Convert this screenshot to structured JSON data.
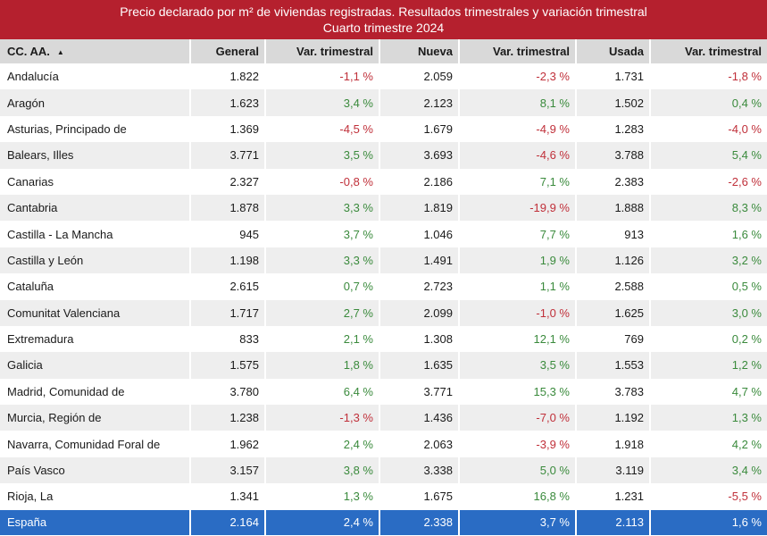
{
  "title": {
    "line1": "Precio declarado por m² de viviendas registradas. Resultados trimestrales y variación trimestral",
    "line2": "Cuarto trimestre 2024"
  },
  "columns": [
    "CC. AA.",
    "General",
    "Var. trimestral",
    "Nueva",
    "Var. trimestral",
    "Usada",
    "Var. trimestral"
  ],
  "sort_icon": "sort-ascending-icon",
  "sort_glyph": "▲",
  "colors": {
    "header_bar": "#b5202e",
    "total_row": "#2a6cc4",
    "positive": "#3a8a3c",
    "negative": "#c0303a"
  },
  "rows": [
    [
      "Andalucía",
      "1.822",
      "-1,1 %",
      "2.059",
      "-2,3 %",
      "1.731",
      "-1,8 %"
    ],
    [
      "Aragón",
      "1.623",
      "3,4 %",
      "2.123",
      "8,1 %",
      "1.502",
      "0,4 %"
    ],
    [
      "Asturias, Principado de",
      "1.369",
      "-4,5 %",
      "1.679",
      "-4,9 %",
      "1.283",
      "-4,0 %"
    ],
    [
      "Balears, Illes",
      "3.771",
      "3,5 %",
      "3.693",
      "-4,6 %",
      "3.788",
      "5,4 %"
    ],
    [
      "Canarias",
      "2.327",
      "-0,8 %",
      "2.186",
      "7,1 %",
      "2.383",
      "-2,6 %"
    ],
    [
      "Cantabria",
      "1.878",
      "3,3 %",
      "1.819",
      "-19,9 %",
      "1.888",
      "8,3 %"
    ],
    [
      "Castilla - La Mancha",
      "945",
      "3,7 %",
      "1.046",
      "7,7 %",
      "913",
      "1,6 %"
    ],
    [
      "Castilla y León",
      "1.198",
      "3,3 %",
      "1.491",
      "1,9 %",
      "1.126",
      "3,2 %"
    ],
    [
      "Cataluña",
      "2.615",
      "0,7 %",
      "2.723",
      "1,1 %",
      "2.588",
      "0,5 %"
    ],
    [
      "Comunitat Valenciana",
      "1.717",
      "2,7 %",
      "2.099",
      "-1,0 %",
      "1.625",
      "3,0 %"
    ],
    [
      "Extremadura",
      "833",
      "2,1 %",
      "1.308",
      "12,1 %",
      "769",
      "0,2 %"
    ],
    [
      "Galicia",
      "1.575",
      "1,8 %",
      "1.635",
      "3,5 %",
      "1.553",
      "1,2 %"
    ],
    [
      "Madrid, Comunidad de",
      "3.780",
      "6,4 %",
      "3.771",
      "15,3 %",
      "3.783",
      "4,7 %"
    ],
    [
      "Murcia, Región de",
      "1.238",
      "-1,3 %",
      "1.436",
      "-7,0 %",
      "1.192",
      "1,3 %"
    ],
    [
      "Navarra, Comunidad Foral de",
      "1.962",
      "2,4 %",
      "2.063",
      "-3,9 %",
      "1.918",
      "4,2 %"
    ],
    [
      "País Vasco",
      "3.157",
      "3,8 %",
      "3.338",
      "5,0 %",
      "3.119",
      "3,4 %"
    ],
    [
      "Rioja, La",
      "1.341",
      "1,3 %",
      "1.675",
      "16,8 %",
      "1.231",
      "-5,5 %"
    ]
  ],
  "total": [
    "España",
    "2.164",
    "2,4 %",
    "2.338",
    "3,7 %",
    "2.113",
    "1,6 %"
  ]
}
